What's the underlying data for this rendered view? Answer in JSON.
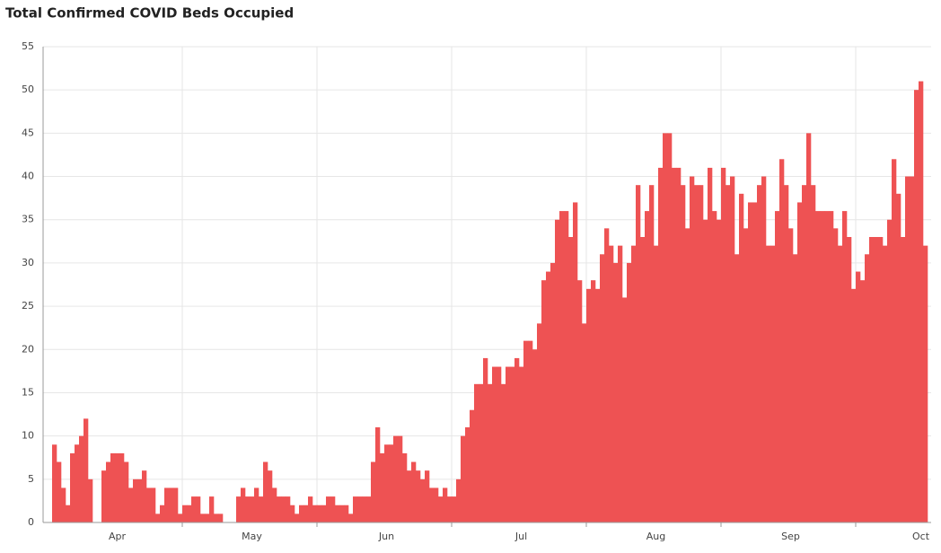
{
  "chart_data": {
    "type": "bar",
    "title": "Total Confirmed COVID Beds Occupied",
    "color": "#ee5253",
    "grid": true,
    "ylim": [
      0,
      55
    ],
    "yticks": [
      0,
      5,
      10,
      15,
      20,
      25,
      30,
      35,
      40,
      45,
      50,
      55
    ],
    "categories": [
      null,
      null,
      null,
      null,
      null,
      null,
      null,
      null,
      null,
      null,
      null,
      null,
      null,
      null,
      null,
      "Apr",
      null,
      null,
      null,
      null,
      null,
      null,
      null,
      null,
      null,
      null,
      null,
      null,
      null,
      null,
      null,
      null,
      null,
      null,
      null,
      null,
      null,
      null,
      null,
      null,
      null,
      null,
      null,
      null,
      null,
      "May",
      null,
      null,
      null,
      null,
      null,
      null,
      null,
      null,
      null,
      null,
      null,
      null,
      null,
      null,
      null,
      null,
      null,
      null,
      null,
      null,
      null,
      null,
      null,
      null,
      null,
      null,
      null,
      null,
      null,
      "Jun",
      null,
      null,
      null,
      null,
      null,
      null,
      null,
      null,
      null,
      null,
      null,
      null,
      null,
      null,
      null,
      null,
      null,
      null,
      null,
      null,
      null,
      null,
      null,
      null,
      null,
      null,
      null,
      null,
      null,
      "Jul",
      null,
      null,
      null,
      null,
      null,
      null,
      null,
      null,
      null,
      null,
      null,
      null,
      null,
      null,
      null,
      null,
      null,
      null,
      null,
      null,
      null,
      null,
      null,
      null,
      null,
      null,
      null,
      null,
      null,
      "Aug",
      null,
      null,
      null,
      null,
      null,
      null,
      null,
      null,
      null,
      null,
      null,
      null,
      null,
      null,
      null,
      null,
      null,
      null,
      null,
      null,
      null,
      null,
      null,
      null,
      null,
      null,
      null,
      null,
      null,
      "Sep",
      null,
      null,
      null,
      null,
      null,
      null,
      null,
      null,
      null,
      null,
      null,
      null,
      null,
      null,
      null,
      null,
      null,
      null,
      null,
      null,
      null,
      null,
      null,
      null,
      null,
      null,
      null,
      null,
      "Oct",
      null
    ],
    "values": [
      0,
      9,
      7,
      4,
      2,
      8,
      9,
      10,
      12,
      5,
      0,
      0,
      6,
      7,
      8,
      8,
      8,
      7,
      4,
      5,
      5,
      6,
      4,
      4,
      1,
      2,
      4,
      4,
      4,
      1,
      2,
      2,
      3,
      3,
      1,
      1,
      3,
      1,
      1,
      0,
      0,
      0,
      3,
      4,
      3,
      3,
      4,
      3,
      7,
      6,
      4,
      3,
      3,
      3,
      2,
      1,
      2,
      2,
      3,
      2,
      2,
      2,
      3,
      3,
      2,
      2,
      2,
      1,
      3,
      3,
      3,
      3,
      7,
      11,
      8,
      9,
      9,
      10,
      10,
      8,
      6,
      7,
      6,
      5,
      6,
      4,
      4,
      3,
      4,
      3,
      3,
      5,
      10,
      11,
      13,
      16,
      16,
      19,
      16,
      18,
      18,
      16,
      18,
      18,
      19,
      18,
      21,
      21,
      20,
      23,
      28,
      29,
      30,
      35,
      36,
      36,
      33,
      37,
      28,
      23,
      27,
      28,
      27,
      31,
      34,
      32,
      30,
      32,
      26,
      30,
      32,
      39,
      33,
      36,
      39,
      32,
      41,
      45,
      45,
      41,
      41,
      39,
      34,
      40,
      39,
      39,
      35,
      41,
      36,
      35,
      41,
      39,
      40,
      31,
      38,
      34,
      37,
      37,
      39,
      40,
      32,
      32,
      36,
      42,
      39,
      34,
      31,
      37,
      39,
      45,
      39,
      36,
      36,
      36,
      36,
      34,
      32,
      36,
      33,
      27,
      29,
      28,
      31,
      33,
      33,
      33,
      32,
      35,
      42,
      38,
      33,
      40,
      40,
      50,
      51,
      32
    ]
  }
}
